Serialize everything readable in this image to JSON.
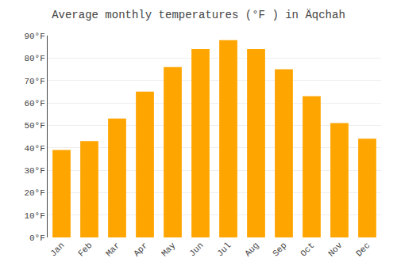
{
  "chart_data": {
    "type": "bar",
    "title": "Average monthly temperatures (°F ) in Äqchah",
    "categories": [
      "Jan",
      "Feb",
      "Mar",
      "Apr",
      "May",
      "Jun",
      "Jul",
      "Aug",
      "Sep",
      "Oct",
      "Nov",
      "Dec"
    ],
    "values": [
      39,
      43,
      53,
      65,
      76,
      84,
      88,
      84,
      75,
      63,
      51,
      44
    ],
    "color": "#FFA500",
    "ylim": [
      0,
      90
    ],
    "yticks": [
      {
        "value": 0,
        "label": "0°F"
      },
      {
        "value": 10,
        "label": "10°F"
      },
      {
        "value": 20,
        "label": "20°F"
      },
      {
        "value": 30,
        "label": "30°F"
      },
      {
        "value": 40,
        "label": "40°F"
      },
      {
        "value": 50,
        "label": "50°F"
      },
      {
        "value": 60,
        "label": "60°F"
      },
      {
        "value": 70,
        "label": "70°F"
      },
      {
        "value": 80,
        "label": "80°F"
      },
      {
        "value": 90,
        "label": "90°F"
      }
    ],
    "grid": true
  }
}
